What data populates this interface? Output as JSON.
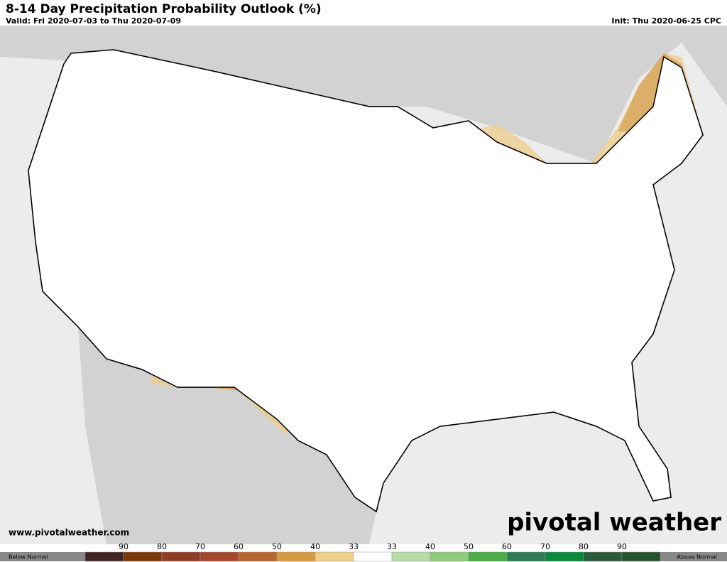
{
  "header": {
    "title": "8-14 Day Precipitation Probability Outlook (%)",
    "valid": "Valid: Fri 2020-07-03 to Thu 2020-07-09",
    "init": "Init: Thu 2020-06-25 CPC"
  },
  "footer": {
    "url": "www.pivotalweather.com",
    "brand": "pivotal weather"
  },
  "legend": {
    "below": "Below Normal",
    "above": "Above Normal",
    "labels": [
      90,
      80,
      70,
      60,
      50,
      40,
      33,
      33,
      40,
      50,
      60,
      70,
      80,
      90
    ],
    "colors": [
      "#3f2323",
      "#7a3a0c",
      "#8f3c26",
      "#a5472c",
      "#b9652f",
      "#d69a3e",
      "#efcd8a",
      "#ffffff",
      "#b6dca8",
      "#8fcb7c",
      "#4aad48",
      "#2f7d58",
      "#0b8a3b",
      "#2b5a3a",
      "#23532b"
    ]
  }
}
